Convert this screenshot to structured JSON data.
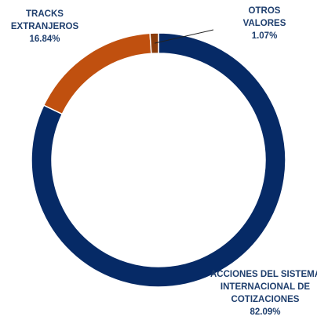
{
  "chart_data": {
    "type": "pie",
    "variant": "donut",
    "title": "",
    "slices": [
      {
        "label_lines": [
          "ACCIONES DEL SISTEMA",
          "INTERNACIONAL DE",
          "COTIZACIONES"
        ],
        "value": 82.09,
        "value_text": "82.09%",
        "color": "#062a66"
      },
      {
        "label_lines": [
          "TRACKS",
          "EXTRANJEROS"
        ],
        "value": 16.84,
        "value_text": "16.84%",
        "color": "#c0500f"
      },
      {
        "label_lines": [
          "OTROS",
          "VALORES"
        ],
        "value": 1.07,
        "value_text": "1.07%",
        "color": "#8a3c0b"
      }
    ],
    "label_color": "#1f3f6e",
    "edge_color": "#ffffff",
    "legend": "none"
  }
}
